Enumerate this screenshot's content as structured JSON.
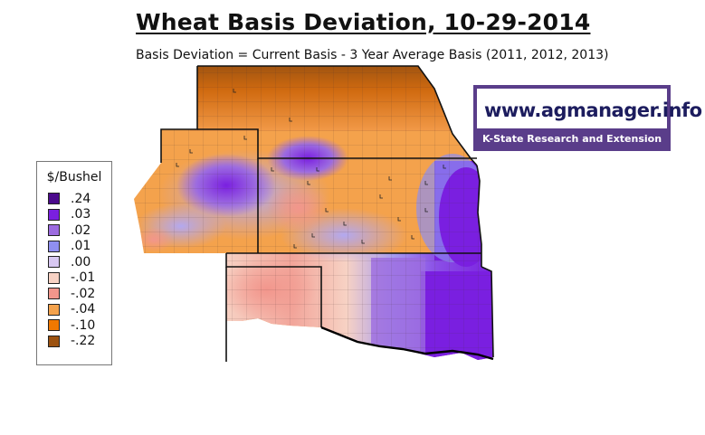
{
  "title": "Wheat Basis Deviation, 10-29-2014",
  "subtitle": "Basis Deviation = Current Basis - 3 Year Average Basis (2011, 2012, 2013)",
  "legend": {
    "title": "$/Bushel",
    "items": [
      {
        "label": ".24",
        "color": "#4b0a8c"
      },
      {
        "label": ".03",
        "color": "#7a1fe0"
      },
      {
        "label": ".02",
        "color": "#9c6be0"
      },
      {
        "label": ".01",
        "color": "#8f8ff0"
      },
      {
        "label": ".00",
        "color": "#d8c8f2"
      },
      {
        "label": "-.01",
        "color": "#f7d2c4"
      },
      {
        "label": "-.02",
        "color": "#f2968c"
      },
      {
        "label": "-.04",
        "color": "#f4a24c"
      },
      {
        "label": "-.10",
        "color": "#f07800"
      },
      {
        "label": "-.22",
        "color": "#9c5210"
      }
    ]
  },
  "logo": {
    "url": "www.agmanager.info",
    "org": "K-State Research and Extension",
    "color": "#5a3d8a"
  }
}
